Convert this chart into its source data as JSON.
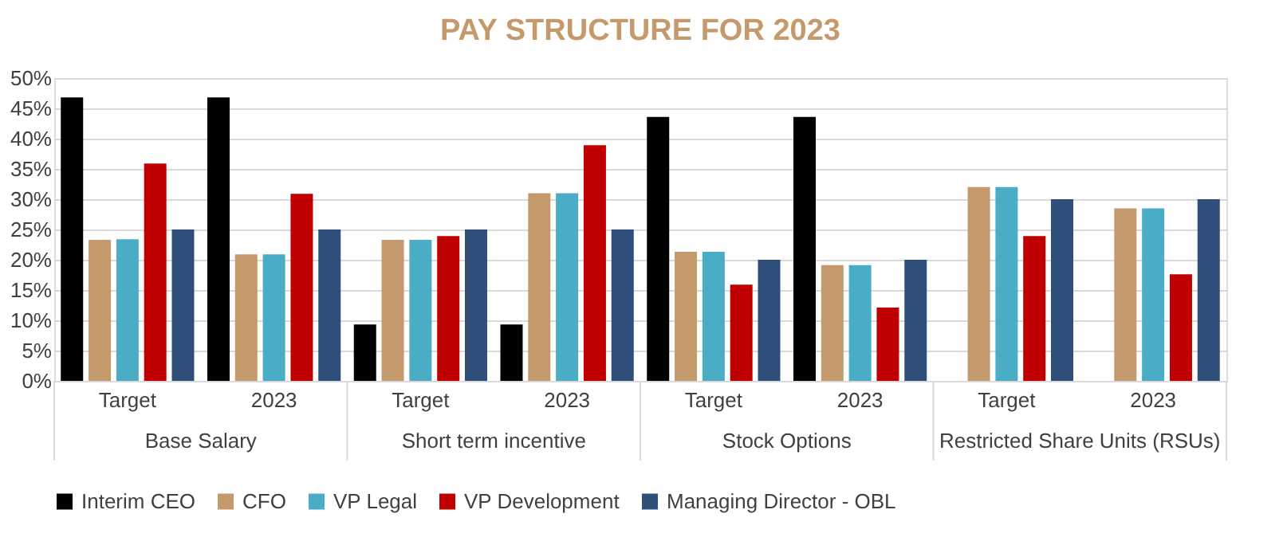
{
  "chart_data": {
    "type": "bar",
    "title": "PAY STRUCTURE FOR 2023",
    "categories": [
      "Target",
      "2023",
      "Target",
      "2023",
      "Target",
      "2023",
      "Target",
      "2023"
    ],
    "series": [
      {
        "name": "Interim CEO",
        "color": "#000000",
        "values": [
          46.8,
          46.8,
          9.3,
          9.3,
          43.6,
          43.6,
          null,
          null
        ]
      },
      {
        "name": "CFO",
        "color": "#c49a6c",
        "values": [
          23.3,
          20.9,
          23.3,
          31,
          21.3,
          19.1,
          32,
          28.5
        ]
      },
      {
        "name": "VP Legal",
        "color": "#4bacc6",
        "values": [
          23.4,
          20.9,
          23.3,
          31,
          21.3,
          19.1,
          32,
          28.5
        ]
      },
      {
        "name": "VP Development",
        "color": "#c00000",
        "values": [
          35.9,
          30.9,
          23.9,
          38.9,
          15.9,
          12.1,
          23.9,
          17.6
        ]
      },
      {
        "name": "Managing Director - OBL",
        "color": "#2f4e79",
        "values": [
          25,
          25,
          25,
          25,
          20,
          20,
          30,
          30
        ]
      }
    ],
    "annotations": [
      "Base Salary",
      "Short term incentive",
      "Stock Options",
      "Restricted Share Units (RSUs)"
    ],
    "ylim": [
      0,
      50
    ],
    "yticks": [
      {
        "value": 0,
        "label": "0%"
      },
      {
        "value": 5,
        "label": "5%"
      },
      {
        "value": 10,
        "label": "10%"
      },
      {
        "value": 15,
        "label": "15%"
      },
      {
        "value": 20,
        "label": "20%"
      },
      {
        "value": 25,
        "label": "25%"
      },
      {
        "value": 30,
        "label": "30%"
      },
      {
        "value": 35,
        "label": "35%"
      },
      {
        "value": 40,
        "label": "40%"
      },
      {
        "value": 45,
        "label": "45%"
      },
      {
        "value": 50,
        "label": "50%"
      }
    ],
    "grid": "y",
    "legend": "bottom"
  }
}
